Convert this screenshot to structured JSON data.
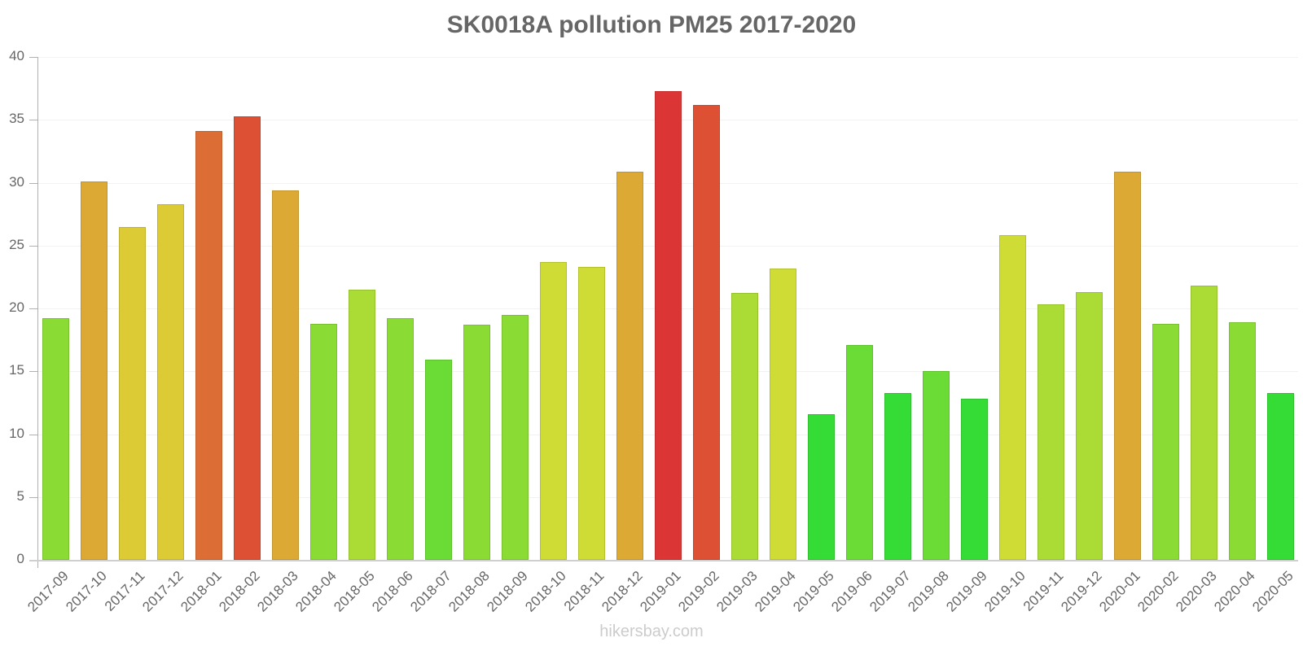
{
  "chart_data": {
    "type": "bar",
    "title": "SK0018A pollution PM25 2017-2020",
    "xlabel": "",
    "ylabel": "",
    "ylim": [
      0,
      40
    ],
    "yticks": [
      0,
      5,
      10,
      15,
      20,
      25,
      30,
      35,
      40
    ],
    "grid": true,
    "legend": "none",
    "categories": [
      "2017-09",
      "2017-10",
      "2017-11",
      "2017-12",
      "2018-01",
      "2018-02",
      "2018-03",
      "2018-04",
      "2018-05",
      "2018-06",
      "2018-07",
      "2018-08",
      "2018-09",
      "2018-10",
      "2018-11",
      "2018-12",
      "2019-01",
      "2019-02",
      "2019-03",
      "2019-04",
      "2019-05",
      "2019-06",
      "2019-07",
      "2019-08",
      "2019-09",
      "2019-10",
      "2019-11",
      "2019-12",
      "2020-01",
      "2020-02",
      "2020-03",
      "2020-04",
      "2020-05"
    ],
    "values": [
      19.2,
      30.1,
      26.5,
      28.3,
      34.1,
      35.3,
      29.4,
      18.8,
      21.5,
      19.2,
      15.9,
      18.7,
      19.5,
      23.7,
      23.3,
      30.9,
      37.3,
      36.2,
      21.2,
      23.2,
      11.6,
      17.1,
      13.3,
      15.0,
      12.8,
      25.8,
      20.3,
      21.3,
      30.9,
      18.8,
      21.8,
      18.9,
      13.3
    ],
    "colors": [
      "#8ADC35",
      "#DCA935",
      "#DCCB35",
      "#DCCB35",
      "#DC6E35",
      "#DD5034",
      "#DCA935",
      "#8ADC35",
      "#ABDC35",
      "#8ADC35",
      "#6BDC35",
      "#8ADC35",
      "#8ADC35",
      "#CEDC35",
      "#CEDC35",
      "#DCA935",
      "#DB3535",
      "#DD5034",
      "#ABDC35",
      "#CEDC35",
      "#35DC35",
      "#6BDC35",
      "#35DC35",
      "#6BDC35",
      "#35DC35",
      "#CEDC35",
      "#ABDC35",
      "#ABDC35",
      "#DCA935",
      "#8ADC35",
      "#ABDC35",
      "#8ADC35",
      "#35DC35"
    ]
  },
  "watermark": "hikersbay.com"
}
